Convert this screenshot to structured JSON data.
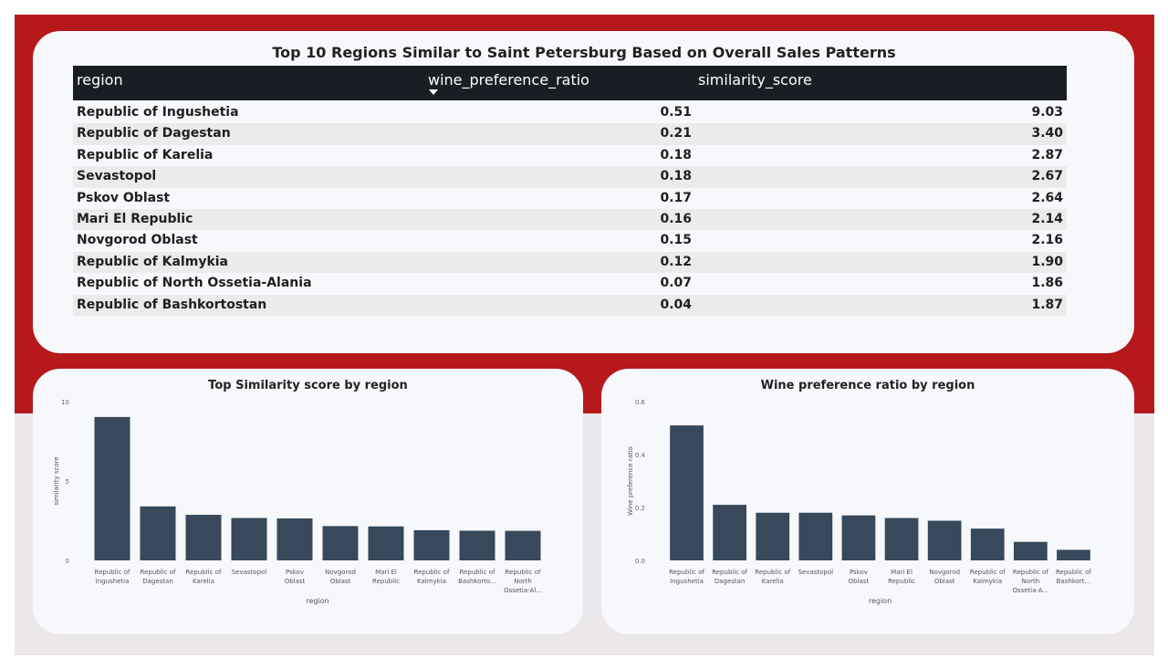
{
  "table": {
    "title": "Top 10 Regions Similar to Saint Petersburg Based on Overall Sales Patterns",
    "columns": [
      "region",
      "wine_preference_ratio",
      "similarity_score"
    ],
    "sort_icon": "sort-descending-icon",
    "rows": [
      {
        "region": "Republic of Ingushetia",
        "wine_preference_ratio": "0.51",
        "similarity_score": "9.03"
      },
      {
        "region": "Republic of Dagestan",
        "wine_preference_ratio": "0.21",
        "similarity_score": "3.40"
      },
      {
        "region": "Republic of Karelia",
        "wine_preference_ratio": "0.18",
        "similarity_score": "2.87"
      },
      {
        "region": "Sevastopol",
        "wine_preference_ratio": "0.18",
        "similarity_score": "2.67"
      },
      {
        "region": "Pskov Oblast",
        "wine_preference_ratio": "0.17",
        "similarity_score": "2.64"
      },
      {
        "region": "Mari El Republic",
        "wine_preference_ratio": "0.16",
        "similarity_score": "2.14"
      },
      {
        "region": "Novgorod Oblast",
        "wine_preference_ratio": "0.15",
        "similarity_score": "2.16"
      },
      {
        "region": "Republic of Kalmykia",
        "wine_preference_ratio": "0.12",
        "similarity_score": "1.90"
      },
      {
        "region": "Republic of North Ossetia-Alania",
        "wine_preference_ratio": "0.07",
        "similarity_score": "1.86"
      },
      {
        "region": "Republic of Bashkortostan",
        "wine_preference_ratio": "0.04",
        "similarity_score": "1.87"
      }
    ]
  },
  "colors": {
    "background_top": "#b5191c",
    "background_bottom": "#ece7ea",
    "card": "#f7f8fc",
    "table_header": "#1a1e24",
    "bar": "#37495a"
  },
  "chart_data": [
    {
      "type": "bar",
      "title": "Top Similarity score by region",
      "xlabel": "region",
      "ylabel": "similarity score",
      "ylim": [
        0,
        10
      ],
      "yticks": [
        "0",
        "5",
        "10"
      ],
      "categories": [
        [
          "Republic of",
          "Ingushetia"
        ],
        [
          "Republic of",
          "Dagestan"
        ],
        [
          "Republic of",
          "Karelia"
        ],
        [
          "Sevastopol"
        ],
        [
          "Pskov",
          "Oblast"
        ],
        [
          "Novgorod",
          "Oblast"
        ],
        [
          "Mari El",
          "Republic"
        ],
        [
          "Republic of",
          "Kalmykia"
        ],
        [
          "Republic of",
          "Bashkorto..."
        ],
        [
          "Republic of",
          "North",
          "Ossetia-Al..."
        ]
      ],
      "values": [
        9.03,
        3.4,
        2.87,
        2.67,
        2.64,
        2.16,
        2.14,
        1.9,
        1.87,
        1.86
      ]
    },
    {
      "type": "bar",
      "title": "Wine preference ratio by region",
      "xlabel": "region",
      "ylabel": "Wine preference ratio",
      "ylim": [
        0,
        0.6
      ],
      "yticks": [
        "0.0",
        "0.2",
        "0.4",
        "0.6"
      ],
      "categories": [
        [
          "Republic of",
          "Ingushetia"
        ],
        [
          "Republic of",
          "Dagestan"
        ],
        [
          "Republic of",
          "Karelia"
        ],
        [
          "Sevastopol"
        ],
        [
          "Pskov",
          "Oblast"
        ],
        [
          "Mari El",
          "Republic"
        ],
        [
          "Novgorod",
          "Oblast"
        ],
        [
          "Republic of",
          "Kalmykia"
        ],
        [
          "Republic of",
          "North",
          "Ossetia-A..."
        ],
        [
          "Republic of",
          "Bashkort..."
        ]
      ],
      "values": [
        0.51,
        0.21,
        0.18,
        0.18,
        0.17,
        0.16,
        0.15,
        0.12,
        0.07,
        0.04
      ]
    }
  ]
}
